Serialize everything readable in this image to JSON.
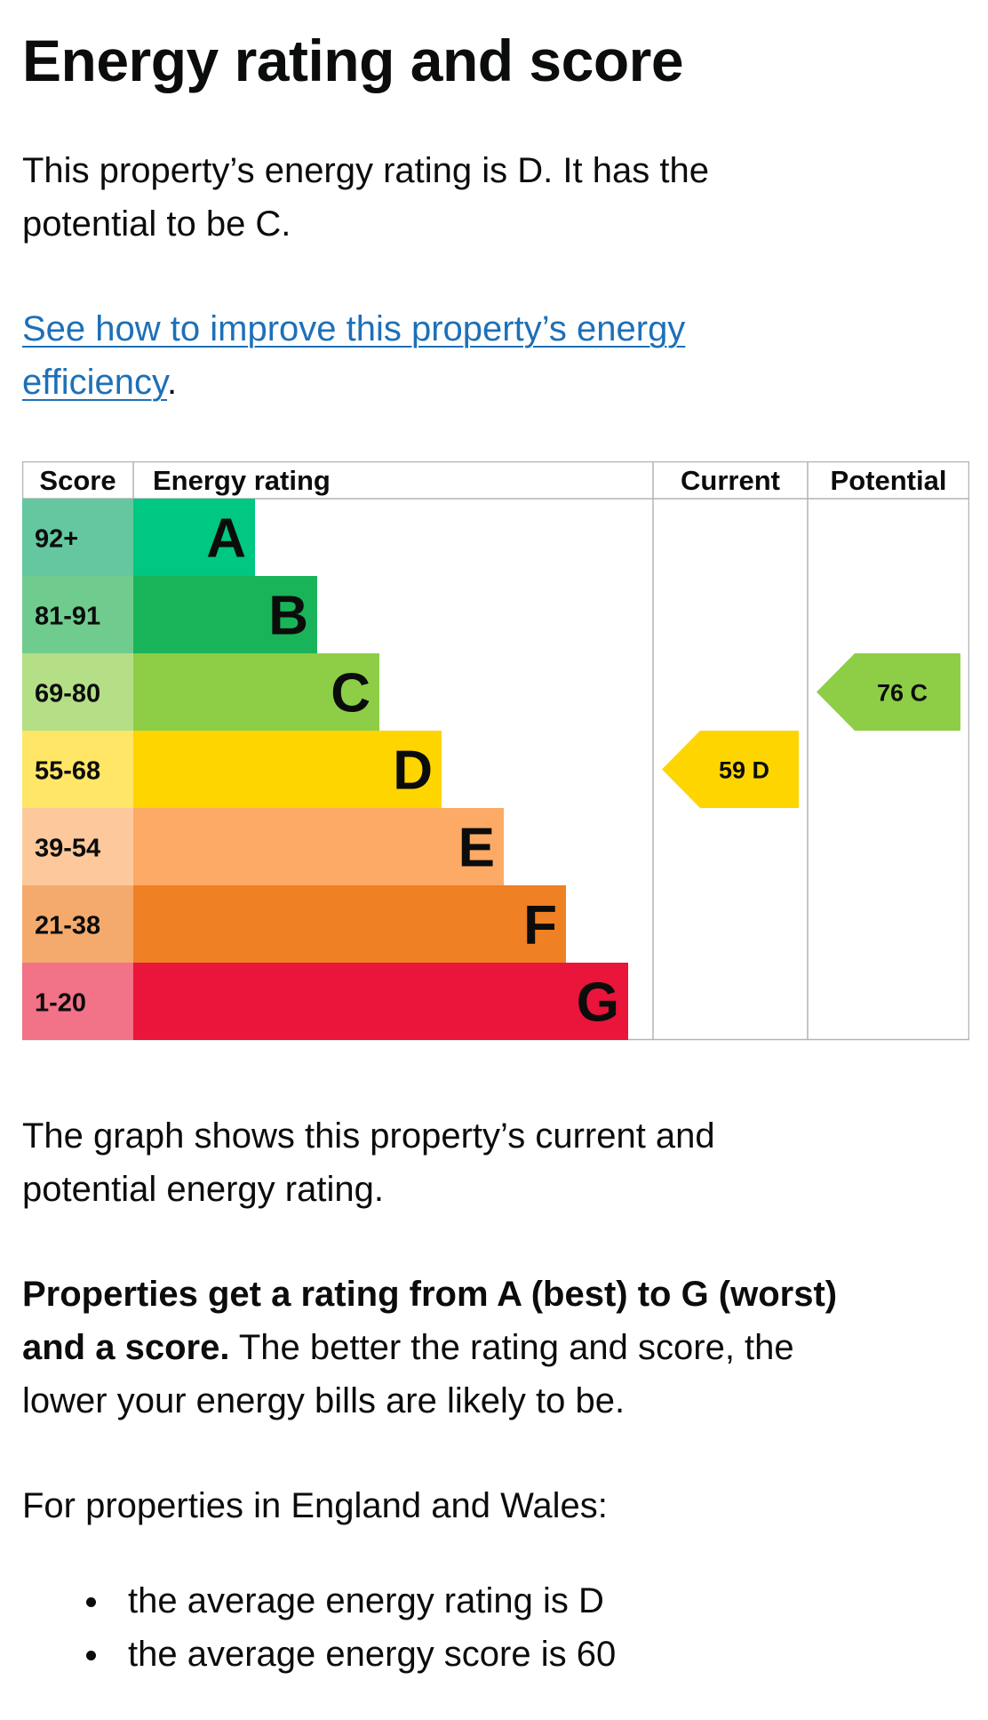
{
  "heading": "Energy rating and score",
  "intro": {
    "line1": "This property’s energy rating is D. It has the",
    "line2": "potential to be C."
  },
  "improve_link": {
    "line1": "See how to improve this property’s energy",
    "line2": "efficiency",
    "suffix": "."
  },
  "chart_data": {
    "type": "bar",
    "headers": [
      "Score",
      "Energy rating",
      "Current",
      "Potential"
    ],
    "bands": [
      {
        "score": "92+",
        "rating": "A",
        "range": [
          92,
          100
        ],
        "color": "#00c781",
        "score_bg": "#64c7a0"
      },
      {
        "score": "81-91",
        "rating": "B",
        "range": [
          81,
          91
        ],
        "color": "#19b459",
        "score_bg": "#6fcc8e"
      },
      {
        "score": "69-80",
        "rating": "C",
        "range": [
          69,
          80
        ],
        "color": "#8dce46",
        "score_bg": "#b4df86"
      },
      {
        "score": "55-68",
        "rating": "D",
        "range": [
          55,
          68
        ],
        "color": "#ffd500",
        "score_bg": "#ffe666"
      },
      {
        "score": "39-54",
        "rating": "E",
        "range": [
          39,
          54
        ],
        "color": "#fcaa65",
        "score_bg": "#fdc99c"
      },
      {
        "score": "21-38",
        "rating": "F",
        "range": [
          21,
          38
        ],
        "color": "#ef8023",
        "score_bg": "#f4aa6d"
      },
      {
        "score": "1-20",
        "rating": "G",
        "range": [
          1,
          20
        ],
        "color": "#e9153b",
        "score_bg": "#f27287"
      }
    ],
    "current": {
      "score": 59,
      "rating": "D",
      "label": "59  D",
      "color": "#ffd500"
    },
    "potential": {
      "score": 76,
      "rating": "C",
      "label": "76  C",
      "color": "#8dce46"
    }
  },
  "graph_caption": {
    "line1": "The graph shows this property’s current and",
    "line2": "potential energy rating."
  },
  "rating_explainer": {
    "bold_line1": "Properties get a rating from A (best) to G (worst)",
    "bold_line2": "and a score.",
    "rest_line2": " The better the rating and score, the",
    "line3": "lower your energy bills are likely to be."
  },
  "england_wales": "For properties in England and Wales:",
  "averages": [
    "the average energy rating is D",
    "the average energy score is 60"
  ]
}
